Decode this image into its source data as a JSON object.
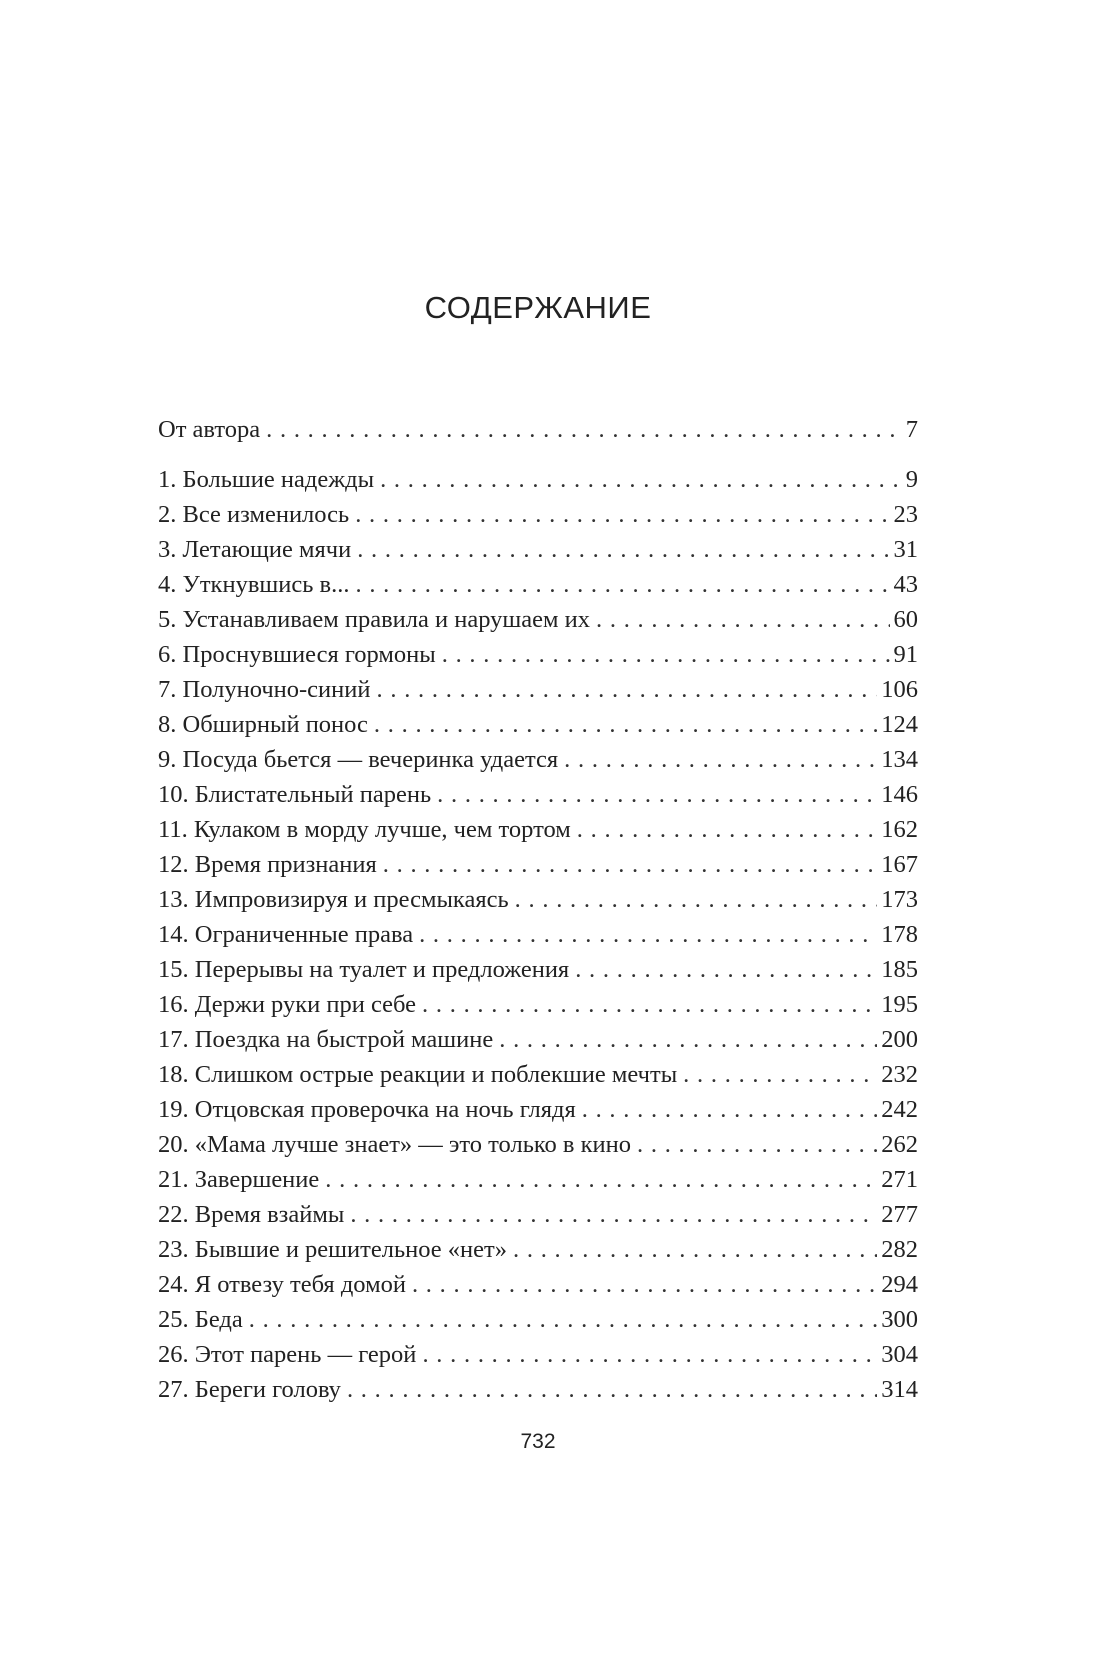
{
  "title": "СОДЕРЖАНИЕ",
  "entries": [
    {
      "label": "От автора",
      "page": "7"
    },
    {
      "label": "1. Большие надежды",
      "page": "9"
    },
    {
      "label": "2. Все изменилось",
      "page": "23"
    },
    {
      "label": "3. Летающие мячи",
      "page": "31"
    },
    {
      "label": "4. Уткнувшись в...",
      "page": "43"
    },
    {
      "label": "5. Устанавливаем правила и нарушаем их",
      "page": "60"
    },
    {
      "label": "6. Проснувшиеся гормоны",
      "page": "91"
    },
    {
      "label": "7. Полуночно-синий",
      "page": "106"
    },
    {
      "label": "8. Обширный понос",
      "page": "124"
    },
    {
      "label": "9. Посуда бьется — вечеринка удается",
      "page": "134"
    },
    {
      "label": "10. Блистательный парень",
      "page": "146"
    },
    {
      "label": "11. Кулаком в морду лучше, чем тортом",
      "page": "162"
    },
    {
      "label": "12. Время признания",
      "page": "167"
    },
    {
      "label": "13. Импровизируя и пресмыкаясь",
      "page": "173"
    },
    {
      "label": "14. Ограниченные права",
      "page": "178"
    },
    {
      "label": "15. Перерывы на туалет и предложения",
      "page": "185"
    },
    {
      "label": "16. Держи руки при себе",
      "page": "195"
    },
    {
      "label": "17. Поездка на быстрой машине",
      "page": "200"
    },
    {
      "label": "18. Слишком острые реакции и поблекшие мечты",
      "page": "232"
    },
    {
      "label": "19. Отцовская проверочка на ночь глядя",
      "page": "242"
    },
    {
      "label": "20. «Мама лучше знает» — это только в кино",
      "page": "262"
    },
    {
      "label": "21. Завершение",
      "page": "271"
    },
    {
      "label": "22. Время взаймы",
      "page": "277"
    },
    {
      "label": "23. Бывшие и решительное «нет»",
      "page": "282"
    },
    {
      "label": "24. Я отвезу тебя домой",
      "page": "294"
    },
    {
      "label": "25. Беда",
      "page": "300"
    },
    {
      "label": "26. Этот парень — герой",
      "page": "304"
    },
    {
      "label": "27. Береги голову",
      "page": "314"
    }
  ],
  "page_number": "732"
}
